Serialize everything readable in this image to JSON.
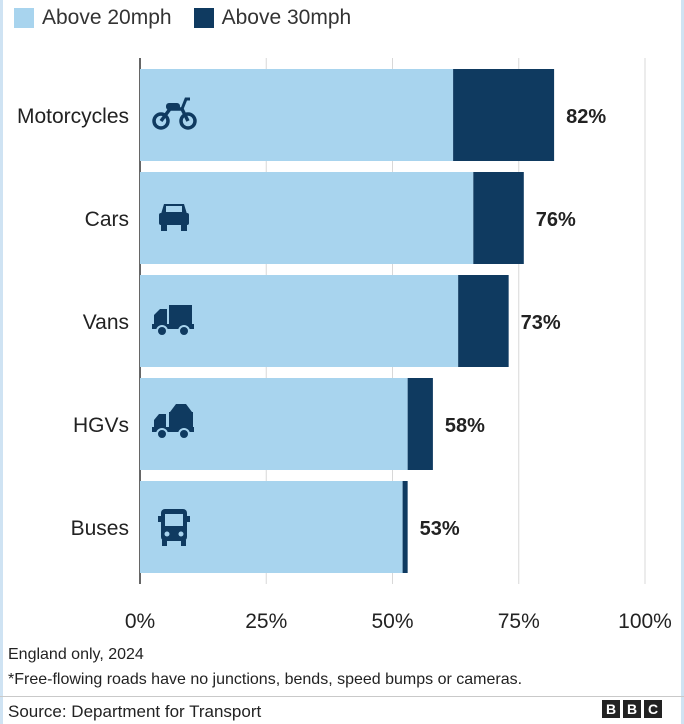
{
  "legend": [
    {
      "label": "Above 20mph",
      "color": "#a8d4ee"
    },
    {
      "label": "Above 30mph",
      "color": "#0f3a60"
    }
  ],
  "chart_data": {
    "type": "bar",
    "orientation": "horizontal",
    "stacked": true,
    "categories": [
      "Motorcycles",
      "Cars",
      "Vans",
      "HGVs",
      "Buses"
    ],
    "icons": [
      "motorcycle-icon",
      "car-icon",
      "van-icon",
      "hgv-icon",
      "bus-icon"
    ],
    "series": [
      {
        "name": "Above 20mph",
        "color": "#a8d4ee",
        "values": [
          62,
          66,
          63,
          53,
          52
        ]
      },
      {
        "name": "Above 30mph",
        "color": "#0f3a60",
        "values": [
          20,
          10,
          10,
          5,
          1
        ]
      }
    ],
    "totals": [
      82,
      76,
      73,
      58,
      53
    ],
    "total_labels": [
      "82%",
      "76%",
      "73%",
      "58%",
      "53%"
    ],
    "xlim": [
      0,
      100
    ],
    "xticks": [
      0,
      25,
      50,
      75,
      100
    ],
    "xtick_labels": [
      "0%",
      "25%",
      "50%",
      "75%",
      "100%"
    ],
    "grid": true
  },
  "footer": {
    "note1": "England only, 2024",
    "note2": "*Free-flowing roads have no junctions, bends, speed bumps or cameras.",
    "source": "Source: Department for Transport",
    "logo": [
      "B",
      "B",
      "C"
    ]
  }
}
